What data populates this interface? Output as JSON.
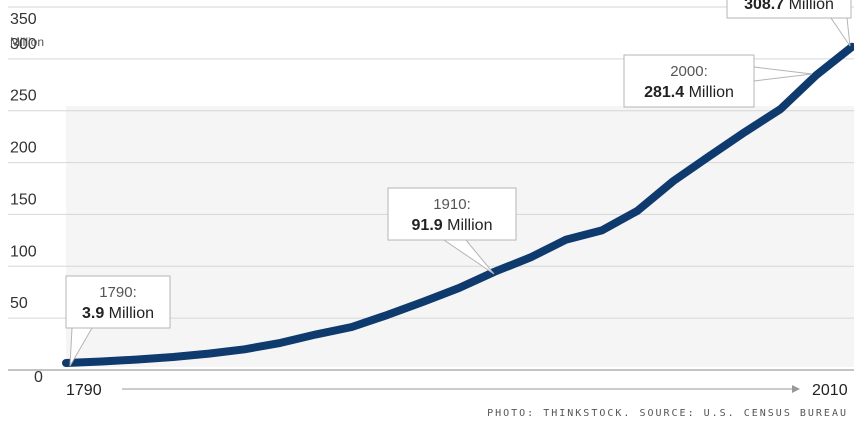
{
  "chart_data": {
    "type": "line",
    "unit_label": "Million",
    "y_ticks": [
      "0",
      "50",
      "100",
      "150",
      "200",
      "250",
      "300",
      "350"
    ],
    "ylim": [
      0,
      350
    ],
    "xlim": [
      1790,
      2010
    ],
    "x_start_label": "1790",
    "x_end_label": "2010",
    "grid": true,
    "series": [
      {
        "x": [
          1790,
          1800,
          1810,
          1820,
          1830,
          1840,
          1850,
          1860,
          1870,
          1880,
          1890,
          1900,
          1910,
          1920,
          1930,
          1940,
          1950,
          1960,
          1970,
          1980,
          1990,
          2000,
          2010
        ],
        "y": [
          3.9,
          5.3,
          7.2,
          9.6,
          12.9,
          17.1,
          23.2,
          31.4,
          38.6,
          50.2,
          63.0,
          76.2,
          91.9,
          105.7,
          122.8,
          131.7,
          150.7,
          179.3,
          203.2,
          226.5,
          248.7,
          281.4,
          308.7
        ]
      }
    ],
    "annotations": [
      {
        "year": "1790:",
        "value": "3.9",
        "unit": " Million",
        "x": 1790,
        "y": 3.9
      },
      {
        "year": "1910:",
        "value": "91.9",
        "unit": " Million",
        "x": 1910,
        "y": 91.9
      },
      {
        "year": "2000:",
        "value": "281.4",
        "unit": " Million",
        "x": 2000,
        "y": 281.4
      },
      {
        "year": "",
        "value": "308.7",
        "unit": " Million",
        "x": 2010,
        "y": 308.7
      }
    ],
    "source": "PHOTO: THINKSTOCK. SOURCE: U.S. CENSUS BUREAU"
  },
  "colors": {
    "line": "#0f3a6e",
    "grid": "#d6d6d6",
    "plot_bg": "#f5f5f5",
    "axis": "#555555"
  }
}
